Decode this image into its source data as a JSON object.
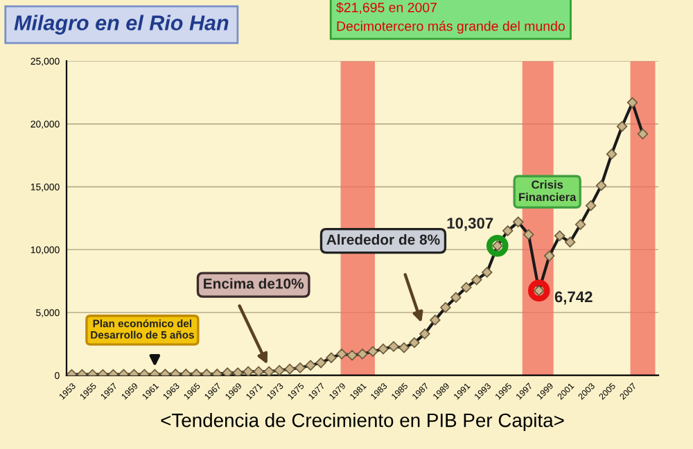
{
  "chart_data": {
    "type": "line",
    "title": "Milagro en el Rio Han",
    "xlabel": "<Tendencia de Crecimiento en PIB Per Capita>",
    "x": [
      1953,
      1954,
      1955,
      1956,
      1957,
      1958,
      1959,
      1960,
      1961,
      1962,
      1963,
      1964,
      1965,
      1966,
      1967,
      1968,
      1969,
      1970,
      1971,
      1972,
      1973,
      1974,
      1975,
      1976,
      1977,
      1978,
      1979,
      1980,
      1981,
      1982,
      1983,
      1984,
      1985,
      1986,
      1987,
      1988,
      1989,
      1990,
      1991,
      1992,
      1993,
      1994,
      1995,
      1996,
      1997,
      1998,
      1999,
      2000,
      2001,
      2002,
      2003,
      2004,
      2005,
      2006,
      2007,
      2008
    ],
    "series": [
      {
        "color": "#1a1a1a",
        "marker": "diamond",
        "values": [
          70,
          70,
          70,
          70,
          70,
          80,
          80,
          80,
          80,
          90,
          100,
          100,
          100,
          100,
          100,
          200,
          200,
          300,
          300,
          300,
          400,
          500,
          600,
          800,
          1000,
          1400,
          1700,
          1600,
          1700,
          1900,
          2100,
          2300,
          2200,
          2600,
          3300,
          4400,
          5400,
          6200,
          7000,
          7600,
          8200,
          10307,
          11500,
          12200,
          11200,
          6742,
          9500,
          11100,
          10600,
          12000,
          13500,
          15100,
          17600,
          19800,
          21695,
          19200
        ]
      },
      {
        "type": "scatter",
        "x": [
          1994,
          1998
        ],
        "colors": [
          "#1a9a1a",
          "#e81010"
        ],
        "values": [
          10307,
          6742
        ]
      }
    ],
    "xlim": [
      1952.5,
      2009.5
    ],
    "xticks": [
      1953,
      1955,
      1957,
      1959,
      1961,
      1963,
      1965,
      1967,
      1969,
      1971,
      1973,
      1975,
      1977,
      1979,
      1981,
      1983,
      1985,
      1987,
      1989,
      1991,
      1993,
      1995,
      1997,
      1999,
      2001,
      2003,
      2005,
      2007
    ],
    "ylim": [
      0,
      25000
    ],
    "yticks": [
      0,
      {
        "value": 5000,
        "label": "5,000"
      },
      {
        "value": 10000,
        "label": "10,000"
      },
      {
        "value": 15000,
        "label": "15,000"
      },
      {
        "value": 20000,
        "label": "20,000"
      },
      {
        "value": 25000,
        "label": "25,000"
      }
    ],
    "grid": "y",
    "bands": [
      {
        "axis": "x",
        "from": 1978.9,
        "to": 1982.2,
        "color": "#f26b5b"
      },
      {
        "axis": "x",
        "from": 1996.4,
        "to": 1999.4,
        "color": "#f26b5b"
      },
      {
        "axis": "x",
        "from": 2006.8,
        "to": 2009.2,
        "color": "#f26b5b"
      }
    ],
    "annotations": [
      {
        "text": "10,307",
        "x": 1994,
        "y": 10307
      },
      {
        "text": "6,742",
        "x": 1998,
        "y": 6742
      },
      "$21,695 en 2007",
      "Decimotercero más grande del mundo",
      "Plan económico del\nDesarrollo de 5 años",
      {
        "text": "Encima de10%",
        "x": 1972,
        "y": 300
      },
      "Alrededor de 8%",
      "Crisis\nFinanciera"
    ]
  }
}
